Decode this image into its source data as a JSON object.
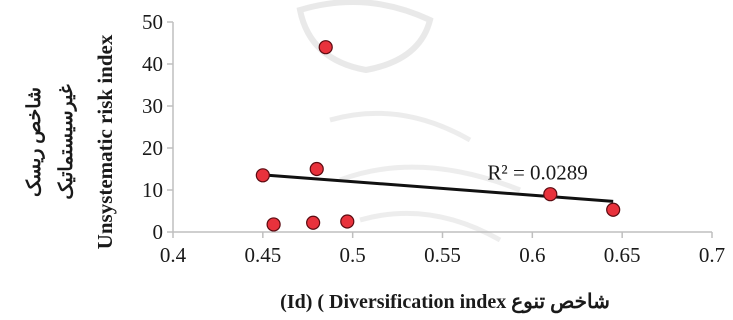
{
  "chart_data": {
    "type": "scatter",
    "title": "",
    "xlabel": "(Id) ( Diversification index شاخص تنوع",
    "ylabel_lines": [
      "Unsystematic risk index",
      "غیرسیستماتیک",
      "شاخص ریسک"
    ],
    "xlim": [
      0.4,
      0.7
    ],
    "ylim": [
      0,
      50
    ],
    "x_ticks": [
      0.4,
      0.45,
      0.5,
      0.55,
      0.6,
      0.65,
      0.7
    ],
    "x_tick_labels": [
      "0.4",
      "0.45",
      "0.5",
      "0.55",
      "0.6",
      "0.65",
      "0.7"
    ],
    "y_ticks": [
      0,
      10,
      20,
      30,
      40,
      50
    ],
    "y_tick_labels": [
      "0",
      "10",
      "20",
      "30",
      "40",
      "50"
    ],
    "grid": false,
    "legend": "none",
    "points": [
      {
        "x": 0.45,
        "y": 13.5
      },
      {
        "x": 0.456,
        "y": 1.8
      },
      {
        "x": 0.478,
        "y": 2.2
      },
      {
        "x": 0.48,
        "y": 15.0
      },
      {
        "x": 0.485,
        "y": 44.0
      },
      {
        "x": 0.497,
        "y": 2.5
      },
      {
        "x": 0.61,
        "y": 9.0
      },
      {
        "x": 0.645,
        "y": 5.3
      }
    ],
    "trendline": {
      "x": [
        0.45,
        0.645
      ],
      "y": [
        13.6,
        7.3
      ]
    },
    "annotation": "R² = 0.0289",
    "annotation_at": {
      "x": 0.575,
      "y": 14.2
    },
    "colors": {
      "point_fill": "#e8323c",
      "point_stroke": "#5a0a10",
      "trendline": "#111111",
      "axis": "#bfbfbf"
    }
  }
}
